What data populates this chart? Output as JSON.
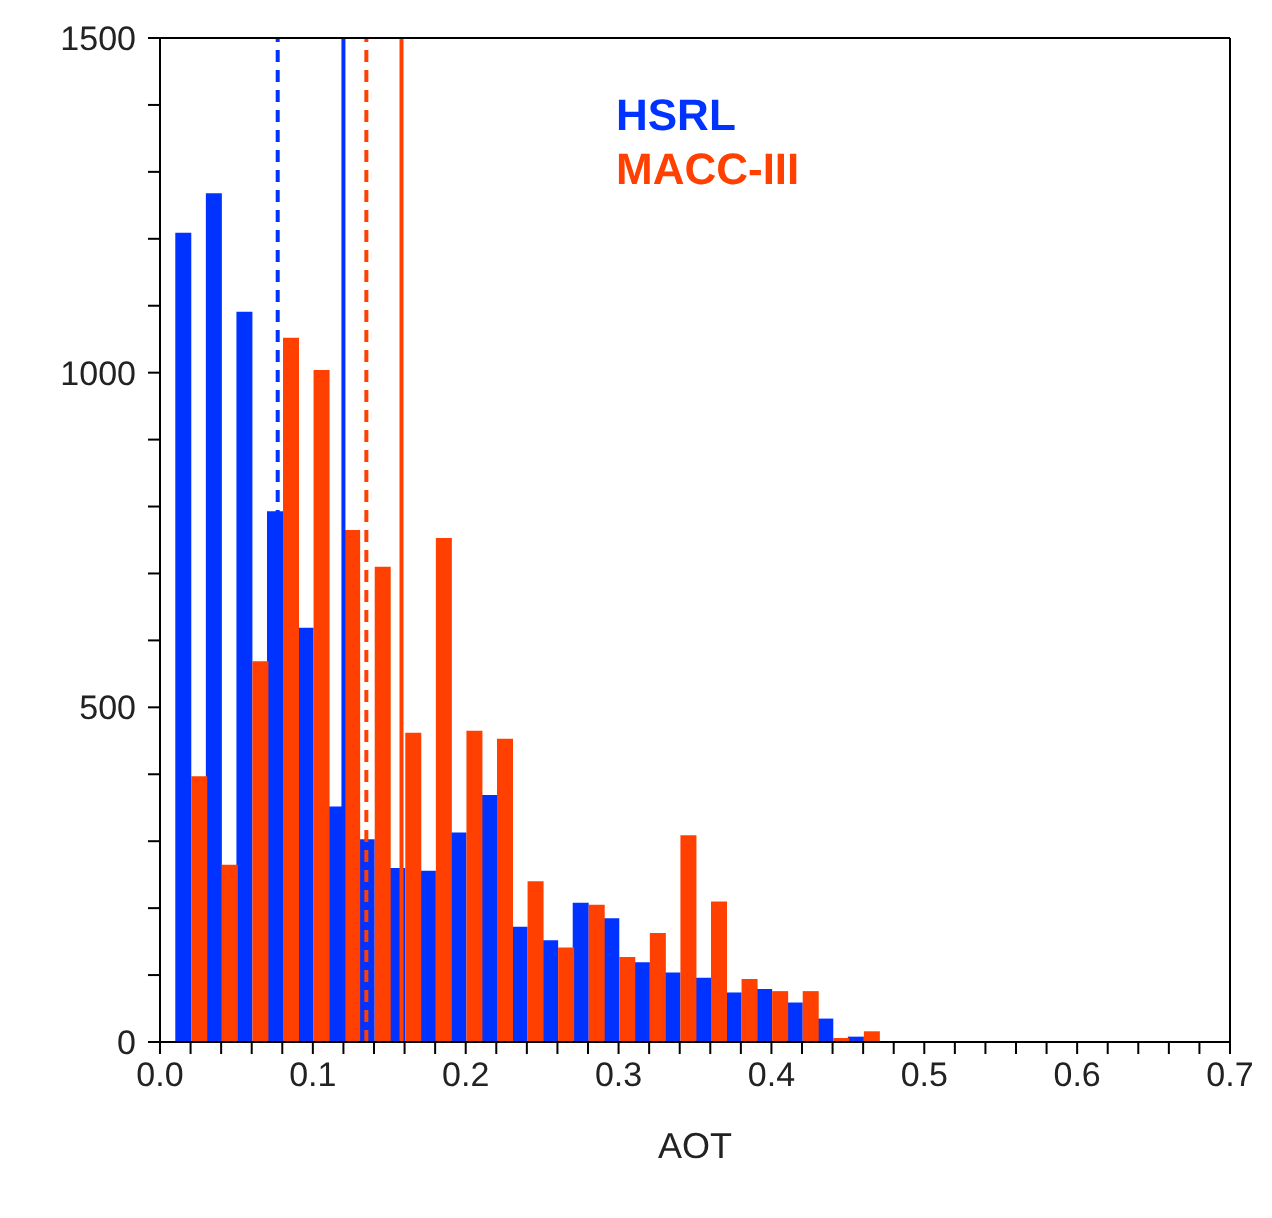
{
  "chart_data": {
    "type": "histogram",
    "xlabel": "AOT",
    "bins": [
      0.01,
      0.03,
      0.05,
      0.07,
      0.09,
      0.11,
      0.13,
      0.15,
      0.17,
      0.19,
      0.21,
      0.23,
      0.25,
      0.27,
      0.29,
      0.31,
      0.33,
      0.35,
      0.37,
      0.39,
      0.41,
      0.43,
      0.45,
      0.47
    ],
    "series": [
      {
        "name": "HSRL",
        "color": "#0033ff",
        "values": [
          1209,
          1268,
          1091,
          793,
          619,
          352,
          303,
          260,
          256,
          313,
          369,
          172,
          152,
          208,
          185,
          119,
          104,
          96,
          74,
          79,
          59,
          35,
          8
        ]
      },
      {
        "name": "MACC-III",
        "color": "#ff4000",
        "values": [
          397,
          265,
          569,
          1052,
          1004,
          765,
          710,
          462,
          753,
          465,
          453,
          240,
          141,
          205,
          127,
          163,
          309,
          210,
          94,
          76,
          76,
          6,
          16
        ]
      }
    ],
    "xlim": [
      0,
      0.7
    ],
    "xticks": [
      {
        "value": 0,
        "label": "0.0"
      },
      {
        "value": 0.02,
        "label": null
      },
      {
        "value": 0.04,
        "label": null
      },
      {
        "value": 0.06,
        "label": null
      },
      {
        "value": 0.08,
        "label": null
      },
      0.1,
      {
        "value": 0.12,
        "label": null
      },
      {
        "value": 0.14,
        "label": null
      },
      {
        "value": 0.16,
        "label": null
      },
      {
        "value": 0.18,
        "label": null
      },
      0.2,
      {
        "value": 0.22,
        "label": null
      },
      {
        "value": 0.24,
        "label": null
      },
      {
        "value": 0.26,
        "label": null
      },
      {
        "value": 0.28,
        "label": null
      },
      0.3,
      {
        "value": 0.32,
        "label": null
      },
      {
        "value": 0.34,
        "label": null
      },
      {
        "value": 0.36,
        "label": null
      },
      {
        "value": 0.38,
        "label": null
      },
      0.4,
      {
        "value": 0.42,
        "label": null
      },
      {
        "value": 0.44,
        "label": null
      },
      {
        "value": 0.46,
        "label": null
      },
      {
        "value": 0.48,
        "label": null
      },
      0.5,
      {
        "value": 0.52,
        "label": null
      },
      {
        "value": 0.54,
        "label": null
      },
      {
        "value": 0.56,
        "label": null
      },
      {
        "value": 0.58,
        "label": null
      },
      0.6,
      {
        "value": 0.62,
        "label": null
      },
      {
        "value": 0.64,
        "label": null
      },
      {
        "value": 0.66,
        "label": null
      },
      {
        "value": 0.68,
        "label": null
      },
      0.7
    ],
    "ylim": [
      0,
      1500
    ],
    "yticks": [
      0,
      {
        "value": 100,
        "label": null
      },
      {
        "value": 200,
        "label": null
      },
      {
        "value": 300,
        "label": null
      },
      {
        "value": 400,
        "label": null
      },
      500,
      {
        "value": 600,
        "label": null
      },
      {
        "value": 700,
        "label": null
      },
      {
        "value": 800,
        "label": null
      },
      {
        "value": 900,
        "label": null
      },
      1000,
      {
        "value": 1100,
        "label": null
      },
      {
        "value": 1200,
        "label": null
      },
      {
        "value": 1300,
        "label": null
      },
      {
        "value": 1400,
        "label": null
      },
      1500
    ],
    "ref_lines": [
      {
        "axis": "x",
        "value": 0.077,
        "color": "#0033ff",
        "line_style": "dashed"
      },
      {
        "axis": "x",
        "value": 0.12,
        "color": "#0033ff",
        "line_style": "solid"
      },
      {
        "axis": "x",
        "value": 0.135,
        "color": "#ff4000",
        "line_style": "dashed"
      },
      {
        "axis": "x",
        "value": 0.158,
        "color": "#ff4000",
        "line_style": "solid"
      }
    ],
    "legend": "top right",
    "grid": false
  }
}
